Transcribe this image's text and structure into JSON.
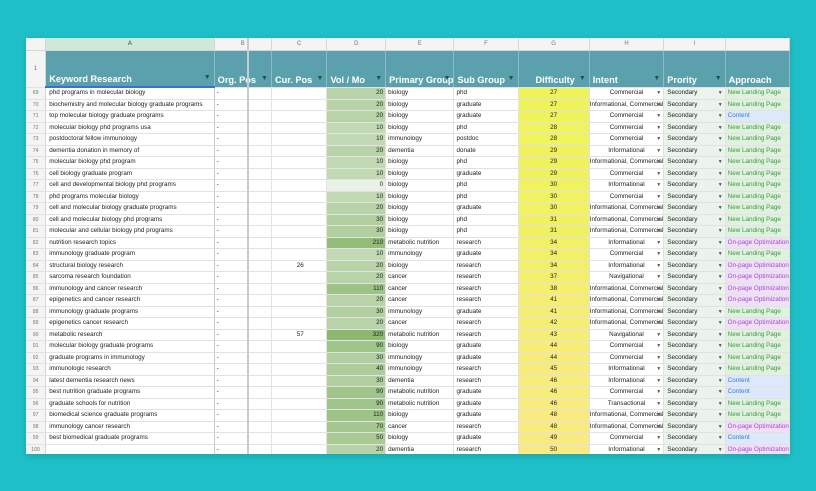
{
  "column_letters": [
    "A",
    "B",
    "C",
    "D",
    "E",
    "F",
    "G",
    "H",
    "I",
    ""
  ],
  "header_row_number": "1",
  "headers": {
    "keyword": "Keyword Research",
    "org_pos": "Org. Pos",
    "cur_pos": "Cur. Pos",
    "vol": "Vol / Mo",
    "primary_group": "Primary Group",
    "sub_group": "Sub Group",
    "difficulty": "Difficulty",
    "intent": "Intent",
    "priority": "Prority",
    "approach": "Approach"
  },
  "colors": {
    "background": "#1fbfc7",
    "header": "#5ba1ad",
    "approach_new": "#3a9a3c",
    "approach_content": "#2f7dd6",
    "approach_onpage": "#a548cf"
  },
  "rows": [
    {
      "n": "69",
      "kw": "phd programs in molecular biology",
      "org": "-",
      "cur": "",
      "vol": "20",
      "group": "biology",
      "sub": "phd",
      "diff": "27",
      "intent": "Commercial",
      "prio": "Secondary",
      "appr": "New Landing Page"
    },
    {
      "n": "70",
      "kw": "biochemistry and molecular biology graduate programs",
      "org": "-",
      "cur": "",
      "vol": "20",
      "group": "biology",
      "sub": "graduate",
      "diff": "27",
      "intent": "Informational, Commercial",
      "prio": "Secondary",
      "appr": "New Landing Page"
    },
    {
      "n": "71",
      "kw": "top molecular biology graduate programs",
      "org": "-",
      "cur": "",
      "vol": "20",
      "group": "biology",
      "sub": "graduate",
      "diff": "27",
      "intent": "Commercial",
      "prio": "Secondary",
      "appr": "Content"
    },
    {
      "n": "72",
      "kw": "molecular biology phd programs usa",
      "org": "-",
      "cur": "",
      "vol": "10",
      "group": "biology",
      "sub": "phd",
      "diff": "28",
      "intent": "Commercial",
      "prio": "Secondary",
      "appr": "New Landing Page"
    },
    {
      "n": "73",
      "kw": "postdoctoral fellow immunology",
      "org": "-",
      "cur": "",
      "vol": "10",
      "group": "immunology",
      "sub": "postdoc",
      "diff": "28",
      "intent": "Commercial",
      "prio": "Secondary",
      "appr": "New Landing Page"
    },
    {
      "n": "74",
      "kw": "dementia donation in memory of",
      "org": "-",
      "cur": "",
      "vol": "20",
      "group": "dementia",
      "sub": "donate",
      "diff": "29",
      "intent": "Informational",
      "prio": "Secondary",
      "appr": "New Landing Page"
    },
    {
      "n": "75",
      "kw": "molecular biology phd program",
      "org": "-",
      "cur": "",
      "vol": "10",
      "group": "biology",
      "sub": "phd",
      "diff": "29",
      "intent": "Informational, Commercial",
      "prio": "Secondary",
      "appr": "New Landing Page"
    },
    {
      "n": "76",
      "kw": "cell biology graduate program",
      "org": "-",
      "cur": "",
      "vol": "10",
      "group": "biology",
      "sub": "graduate",
      "diff": "29",
      "intent": "Commercial",
      "prio": "Secondary",
      "appr": "New Landing Page"
    },
    {
      "n": "77",
      "kw": "cell and developmental biology phd programs",
      "org": "-",
      "cur": "",
      "vol": "0",
      "group": "biology",
      "sub": "phd",
      "diff": "30",
      "intent": "Informational",
      "prio": "Secondary",
      "appr": "New Landing Page"
    },
    {
      "n": "78",
      "kw": "phd programs molecular biology",
      "org": "-",
      "cur": "",
      "vol": "10",
      "group": "biology",
      "sub": "phd",
      "diff": "30",
      "intent": "Commercial",
      "prio": "Secondary",
      "appr": "New Landing Page"
    },
    {
      "n": "79",
      "kw": "cell and molecular biology graduate programs",
      "org": "-",
      "cur": "",
      "vol": "20",
      "group": "biology",
      "sub": "graduate",
      "diff": "30",
      "intent": "Informational, Commercial",
      "prio": "Secondary",
      "appr": "New Landing Page"
    },
    {
      "n": "80",
      "kw": "cell and molecular biology phd programs",
      "org": "-",
      "cur": "",
      "vol": "30",
      "group": "biology",
      "sub": "phd",
      "diff": "31",
      "intent": "Informational, Commercial",
      "prio": "Secondary",
      "appr": "New Landing Page"
    },
    {
      "n": "81",
      "kw": "molecular and cellular biology phd programs",
      "org": "-",
      "cur": "",
      "vol": "30",
      "group": "biology",
      "sub": "phd",
      "diff": "31",
      "intent": "Informational, Commercial",
      "prio": "Secondary",
      "appr": "New Landing Page"
    },
    {
      "n": "82",
      "kw": "nutrition research topics",
      "org": "-",
      "cur": "",
      "vol": "210",
      "group": "metabolic nutrition",
      "sub": "research",
      "diff": "34",
      "intent": "Informational",
      "prio": "Secondary",
      "appr": "On-page Optimization"
    },
    {
      "n": "83",
      "kw": "immunology graduate program",
      "org": "-",
      "cur": "",
      "vol": "10",
      "group": "immunology",
      "sub": "graduate",
      "diff": "34",
      "intent": "Commercial",
      "prio": "Secondary",
      "appr": "New Landing Page"
    },
    {
      "n": "84",
      "kw": "structural biology research",
      "org": "-",
      "cur": "26",
      "vol": "20",
      "group": "biology",
      "sub": "research",
      "diff": "34",
      "intent": "Informational",
      "prio": "Secondary",
      "appr": "On-page Optimization"
    },
    {
      "n": "85",
      "kw": "sarcoma research foundation",
      "org": "-",
      "cur": "",
      "vol": "20",
      "group": "cancer",
      "sub": "research",
      "diff": "37",
      "intent": "Navigational",
      "prio": "Secondary",
      "appr": "On-page Optimization"
    },
    {
      "n": "86",
      "kw": "immunology and cancer research",
      "org": "-",
      "cur": "",
      "vol": "110",
      "group": "cancer",
      "sub": "research",
      "diff": "38",
      "intent": "Informational, Commercial",
      "prio": "Secondary",
      "appr": "On-page Optimization"
    },
    {
      "n": "87",
      "kw": "epigenetics and cancer research",
      "org": "-",
      "cur": "",
      "vol": "20",
      "group": "cancer",
      "sub": "research",
      "diff": "41",
      "intent": "Informational, Commercial",
      "prio": "Secondary",
      "appr": "On-page Optimization"
    },
    {
      "n": "88",
      "kw": "immunology graduate programs",
      "org": "-",
      "cur": "",
      "vol": "30",
      "group": "immunology",
      "sub": "graduate",
      "diff": "41",
      "intent": "Informational, Commercial",
      "prio": "Secondary",
      "appr": "New Landing Page"
    },
    {
      "n": "89",
      "kw": "epigenetics cancer research",
      "org": "-",
      "cur": "",
      "vol": "20",
      "group": "cancer",
      "sub": "research",
      "diff": "42",
      "intent": "Informational, Commercial",
      "prio": "Secondary",
      "appr": "On-page Optimization"
    },
    {
      "n": "90",
      "kw": "metabolic research",
      "org": "-",
      "cur": "57",
      "vol": "320",
      "group": "metabolic nutrition",
      "sub": "research",
      "diff": "43",
      "intent": "Navigational",
      "prio": "Secondary",
      "appr": "New Landing Page"
    },
    {
      "n": "91",
      "kw": "molecular biology graduate programs",
      "org": "-",
      "cur": "",
      "vol": "90",
      "group": "biology",
      "sub": "graduate",
      "diff": "44",
      "intent": "Commercial",
      "prio": "Secondary",
      "appr": "New Landing Page"
    },
    {
      "n": "92",
      "kw": "graduate programs in immunology",
      "org": "-",
      "cur": "",
      "vol": "30",
      "group": "immunology",
      "sub": "graduate",
      "diff": "44",
      "intent": "Commercial",
      "prio": "Secondary",
      "appr": "New Landing Page"
    },
    {
      "n": "93",
      "kw": "immunologic research",
      "org": "-",
      "cur": "",
      "vol": "40",
      "group": "immunology",
      "sub": "research",
      "diff": "45",
      "intent": "Informational",
      "prio": "Secondary",
      "appr": "New Landing Page"
    },
    {
      "n": "94",
      "kw": "latest dementia research news",
      "org": "-",
      "cur": "",
      "vol": "30",
      "group": "dementia",
      "sub": "research",
      "diff": "46",
      "intent": "Informational",
      "prio": "Secondary",
      "appr": "Content"
    },
    {
      "n": "95",
      "kw": "best nutrition graduate programs",
      "org": "-",
      "cur": "",
      "vol": "90",
      "group": "metabolic nutrition",
      "sub": "graduate",
      "diff": "46",
      "intent": "Commercial",
      "prio": "Secondary",
      "appr": "Content"
    },
    {
      "n": "96",
      "kw": "graduate schools for nutrition",
      "org": "-",
      "cur": "",
      "vol": "90",
      "group": "metabolic nutrition",
      "sub": "graduate",
      "diff": "46",
      "intent": "Transactional",
      "prio": "Secondary",
      "appr": "New Landing Page"
    },
    {
      "n": "97",
      "kw": "biomedical science graduate programs",
      "org": "-",
      "cur": "",
      "vol": "110",
      "group": "biology",
      "sub": "graduate",
      "diff": "48",
      "intent": "Informational, Commercial",
      "prio": "Secondary",
      "appr": "New Landing Page"
    },
    {
      "n": "98",
      "kw": "immunology cancer research",
      "org": "-",
      "cur": "",
      "vol": "70",
      "group": "cancer",
      "sub": "research",
      "diff": "48",
      "intent": "Informational, Commercial",
      "prio": "Secondary",
      "appr": "On-page Optimization"
    },
    {
      "n": "99",
      "kw": "best biomedical graduate programs",
      "org": "-",
      "cur": "",
      "vol": "50",
      "group": "biology",
      "sub": "graduate",
      "diff": "49",
      "intent": "Commercial",
      "prio": "Secondary",
      "appr": "Content"
    },
    {
      "n": "100",
      "kw": "",
      "org": "-",
      "cur": "",
      "vol": "20",
      "group": "dementia",
      "sub": "research",
      "diff": "50",
      "intent": "Informational",
      "prio": "Secondary",
      "appr": "On-page Optimization"
    }
  ]
}
